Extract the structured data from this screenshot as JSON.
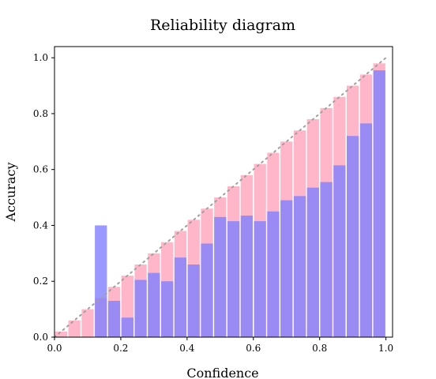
{
  "chart_data": {
    "type": "bar",
    "title": "Reliability diagram",
    "xlabel": "Confidence",
    "ylabel": "Accuracy",
    "xlim": [
      0.0,
      1.02
    ],
    "ylim": [
      0.0,
      1.04
    ],
    "xticks": [
      "0.0",
      "0.2",
      "0.4",
      "0.6",
      "0.8",
      "1.0"
    ],
    "yticks": [
      "0.0",
      "0.2",
      "0.4",
      "0.6",
      "0.8",
      "1.0"
    ],
    "grid": false,
    "legend": "none",
    "diagonal": "dotted y=x reference",
    "bin_width": 0.04,
    "bins": [
      0.02,
      0.06,
      0.1,
      0.14,
      0.18,
      0.22,
      0.26,
      0.3,
      0.34,
      0.38,
      0.42,
      0.46,
      0.5,
      0.54,
      0.58,
      0.62,
      0.66,
      0.7,
      0.74,
      0.78,
      0.82,
      0.86,
      0.9,
      0.94,
      0.98
    ],
    "series": [
      {
        "color": "#ffb6c8",
        "values": [
          0.02,
          0.06,
          0.1,
          0.14,
          0.18,
          0.22,
          0.26,
          0.3,
          0.34,
          0.38,
          0.42,
          0.46,
          0.5,
          0.54,
          0.58,
          0.62,
          0.66,
          0.7,
          0.74,
          0.78,
          0.82,
          0.86,
          0.9,
          0.94,
          0.98
        ]
      },
      {
        "color": "#8080ff",
        "values": [
          0.0,
          0.0,
          0.0,
          0.4,
          0.13,
          0.07,
          0.205,
          0.23,
          0.2,
          0.285,
          0.26,
          0.335,
          0.43,
          0.415,
          0.435,
          0.415,
          0.45,
          0.49,
          0.505,
          0.535,
          0.555,
          0.615,
          0.72,
          0.765,
          0.955
        ]
      }
    ]
  }
}
